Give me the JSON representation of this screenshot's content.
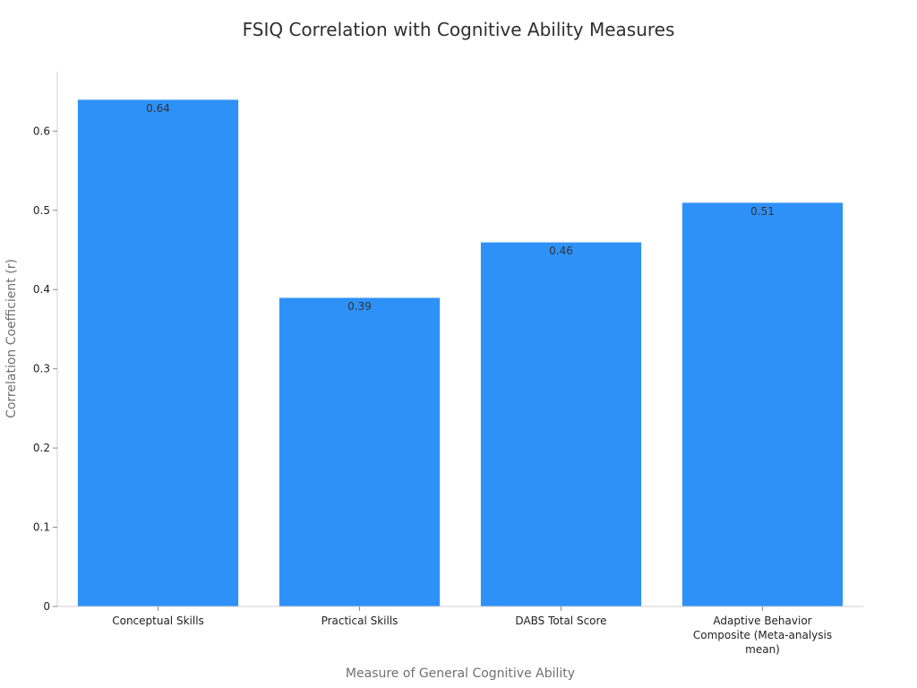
{
  "chart_data": {
    "type": "bar",
    "title": "FSIQ Correlation with Cognitive Ability Measures",
    "xlabel": "Measure of General Cognitive Ability",
    "ylabel": "Correlation Coefficient (r)",
    "categories": [
      "Conceptual Skills",
      "Practical Skills",
      "DABS Total Score",
      "Adaptive Behavior Composite (Meta-analysis mean)"
    ],
    "category_label_lines": [
      [
        "Conceptual Skills"
      ],
      [
        "Practical Skills"
      ],
      [
        "DABS Total Score"
      ],
      [
        "Adaptive Behavior",
        "Composite (Meta-analysis",
        "mean)"
      ]
    ],
    "values": [
      0.64,
      0.39,
      0.46,
      0.51
    ],
    "data_labels": [
      "0.64",
      "0.39",
      "0.46",
      "0.51"
    ],
    "ylim": [
      0,
      0.675
    ],
    "yticks": [
      0,
      0.1,
      0.2,
      0.3,
      0.4,
      0.5,
      0.6
    ],
    "ytick_labels": [
      "0",
      "0.1",
      "0.2",
      "0.3",
      "0.4",
      "0.5",
      "0.6"
    ],
    "grid": false,
    "legend": "none",
    "colors": {
      "bar": "#2e91f8",
      "bar_edge": "#e8f1fb"
    }
  }
}
